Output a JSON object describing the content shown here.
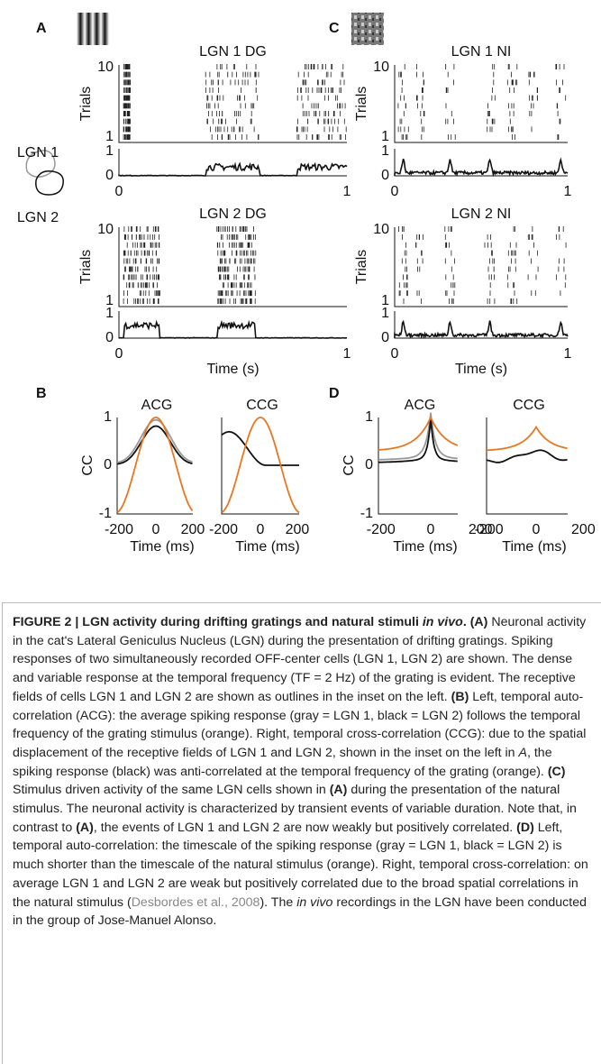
{
  "figure": {
    "panel_labels": [
      "A",
      "B",
      "C",
      "D"
    ],
    "raster_titles": [
      "LGN 1 DG",
      "LGN 2 DG",
      "LGN 1 NI",
      "LGN 2 NI"
    ],
    "corr_titles": [
      "ACG",
      "CCG"
    ],
    "inset_labels": [
      "LGN 1",
      "LGN 2"
    ],
    "axis_labels": {
      "trials": "Trials",
      "time_s": "Time (s)",
      "cc": "CC",
      "time_ms": "Time (ms)"
    },
    "ticks": {
      "trials": [
        "10",
        "1"
      ],
      "rate": [
        "1",
        "0"
      ],
      "time_s": [
        "0",
        "1"
      ],
      "cc": [
        "1",
        "0",
        "-1"
      ],
      "time_ms": [
        "-200",
        "0",
        "200"
      ]
    }
  },
  "caption": {
    "runs": [
      "FIGURE 2 | LGN activity during drifting gratings and natural stimuli ",
      "in vivo",
      ". ",
      "(A)",
      " Neuronal activity in the cat's Lateral Geniculus Nucleus (LGN) during the presentation of drifting gratings. Spiking responses of two simultaneously recorded OFF-center cells (LGN 1, LGN 2) are shown. The dense and variable response at the temporal frequency (TF = 2 Hz) of the grating is evident. The receptive fields of cells LGN 1 and LGN 2 are shown as outlines in the inset on the left. ",
      "(B)",
      " Left, temporal auto-correlation (ACG): the average spiking response (gray = LGN 1, black = LGN 2) follows the temporal frequency of the grating stimulus (orange). Right, temporal cross-correlation (CCG): due to the spatial displacement of the receptive fields of LGN 1 and LGN 2, shown in the inset on the left in ",
      "A",
      ", the spiking response (black) was anti-correlated at the temporal frequency of the grating (orange). ",
      "(C)",
      " Stimulus driven activity of the same LGN cells shown in ",
      "(A)",
      " during the presentation of the natural stimulus. The neuronal activity is characterized by transient events of variable duration. Note that, in contrast to ",
      "(A)",
      ", the events of LGN 1 and LGN 2 are now weakly but positively correlated. ",
      "(D)",
      " Left, temporal auto-correlation: the timescale of the spiking response (gray = LGN 1, black = LGN 2) is much shorter than the timescale of the natural stimulus (orange). Right, temporal cross-correlation: on average LGN 1 and LGN 2 are weak but positively correlated due to the broad spatial correlations in the natural stimulus (",
      "Desbordes et al., 2008",
      "). The ",
      "in vivo",
      " recordings in the LGN have been conducted in the group of Jose-Manuel Alonso."
    ]
  }
}
